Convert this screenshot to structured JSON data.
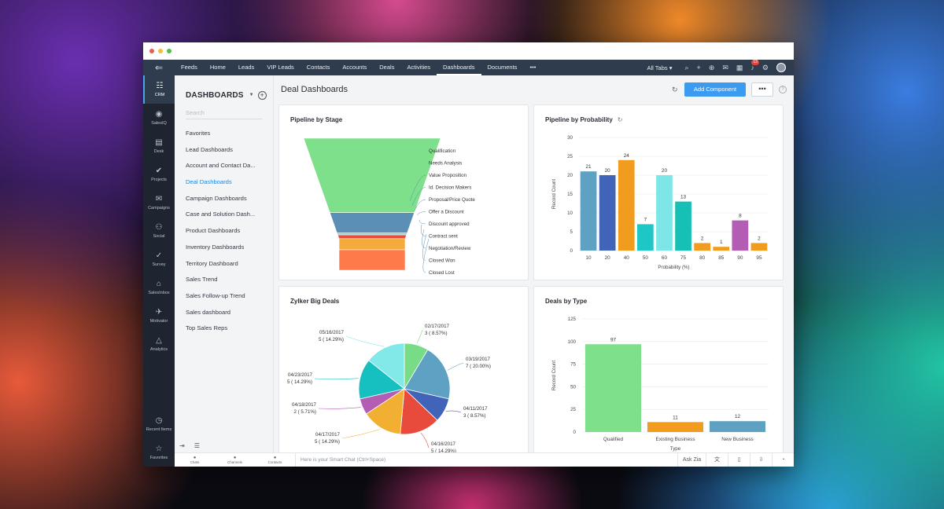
{
  "colors": {
    "accent": "#3a9bf0",
    "nav_bg": "#2f3c4d",
    "rail_bg": "#1f2530",
    "funnel": [
      "#7ee08a",
      "#5b8fb6",
      "#8fd0c7",
      "#e84b3c",
      "#f2b032",
      "#e84b3c",
      "#f5ab3b",
      "#ff7a4a"
    ],
    "green": "#7ee08a",
    "orange": "#f29c1f"
  },
  "topnav": {
    "back_icon": "back-arrow-icon",
    "tabs": [
      "Feeds",
      "Home",
      "Leads",
      "VIP Leads",
      "Contacts",
      "Accounts",
      "Deals",
      "Activities",
      "Dashboards",
      "Documents",
      "•••"
    ],
    "active_tab": "Dashboards",
    "all_tabs": "All Tabs ▾",
    "notification_count": "13"
  },
  "rail": {
    "items": [
      {
        "label": "CRM",
        "icon": "crm-icon",
        "glyph": "☷"
      },
      {
        "label": "SalesIQ",
        "icon": "salesiq-icon",
        "glyph": "◉"
      },
      {
        "label": "Desk",
        "icon": "desk-icon",
        "glyph": "▤"
      },
      {
        "label": "Projects",
        "icon": "projects-icon",
        "glyph": "✔"
      },
      {
        "label": "Campaigns",
        "icon": "campaigns-icon",
        "glyph": "✉"
      },
      {
        "label": "Social",
        "icon": "social-icon",
        "glyph": "⚇"
      },
      {
        "label": "Survey",
        "icon": "survey-icon",
        "glyph": "✓"
      },
      {
        "label": "SalesInbox",
        "icon": "salesinbox-icon",
        "glyph": "⌂"
      },
      {
        "label": "Motivator",
        "icon": "motivator-icon",
        "glyph": "✈"
      },
      {
        "label": "Analytics",
        "icon": "analytics-icon",
        "glyph": "△"
      }
    ],
    "bottom": [
      {
        "label": "Recent Items",
        "icon": "recent-items-icon",
        "glyph": "◷"
      },
      {
        "label": "Favorites",
        "icon": "favorites-icon",
        "glyph": "☆"
      }
    ]
  },
  "dashboards": {
    "title": "DASHBOARDS",
    "search_placeholder": "Search",
    "items": [
      "Favorites",
      "Lead Dashboards",
      "Account and Contact Da...",
      "Deal Dashboards",
      "Campaign Dashboards",
      "Case and Solution Dash...",
      "Product Dashboards",
      "Inventory Dashboards",
      "Territory Dashboard",
      "Sales Trend",
      "Sales Follow-up Trend",
      "Sales dashboard",
      "Top Sales Reps"
    ],
    "active": "Deal Dashboards"
  },
  "main": {
    "title": "Deal Dashboards",
    "add_component": "Add Component",
    "more": "•••",
    "help": "?"
  },
  "bottombar": {
    "tabs": [
      {
        "label": "Chats",
        "icon": "chats-icon"
      },
      {
        "label": "Channels",
        "icon": "channels-icon"
      },
      {
        "label": "Contacts",
        "icon": "contacts-icon"
      }
    ],
    "smartchat_placeholder": "Here is your Smart Chat (Ctrl+Space)",
    "ask_zia": "Ask Zia"
  },
  "chart_data": [
    {
      "type": "funnel",
      "title": "Pipeline by Stage",
      "stages": [
        "Qualification",
        "Needs Analysis",
        "Value Proposition",
        "Id. Decision Makers",
        "Proposal/Price Quote",
        "Offer a Discount",
        "Discount approved",
        "Contract sent",
        "Negotiation/Review",
        "Closed Won",
        "Closed Lost"
      ],
      "segment_values": [
        40,
        11,
        1,
        2,
        6,
        11
      ]
    },
    {
      "type": "bar",
      "title": "Pipeline by Probability",
      "xlabel": "Probability (%)",
      "ylabel": "Record Count",
      "ylim": [
        0,
        30
      ],
      "yticks": [
        0,
        5,
        10,
        15,
        20,
        25,
        30
      ],
      "categories": [
        "10",
        "20",
        "40",
        "50",
        "60",
        "75",
        "80",
        "85",
        "90",
        "95"
      ],
      "values": [
        21,
        20,
        24,
        7,
        20,
        13,
        2,
        1,
        8,
        2
      ],
      "bar_colors": [
        "#5ea1c2",
        "#4163b8",
        "#f29c1f",
        "#1fc6c6",
        "#7ee6e6",
        "#17c0b4",
        "#f29c1f",
        "#f29c1f",
        "#b45db5",
        "#f29c1f"
      ]
    },
    {
      "type": "pie",
      "title": "Zylker Big Deals",
      "slices": [
        {
          "label": "02/17/2017",
          "value": 3,
          "pct": "8.57%",
          "color": "#78dc87"
        },
        {
          "label": "03/19/2017",
          "value": 7,
          "pct": "20.00%",
          "color": "#5ea1c2"
        },
        {
          "label": "04/11/2017",
          "value": 3,
          "pct": "8.57%",
          "color": "#4163b8"
        },
        {
          "label": "04/16/2017",
          "value": 5,
          "pct": "14.29%",
          "color": "#e84b3c"
        },
        {
          "label": "04/17/2017",
          "value": 5,
          "pct": "14.29%",
          "color": "#f2b032"
        },
        {
          "label": "04/18/2017",
          "value": 2,
          "pct": "5.71%",
          "color": "#b45db5"
        },
        {
          "label": "04/23/2017",
          "value": 5,
          "pct": "14.29%",
          "color": "#17c0c0"
        },
        {
          "label": "05/16/2017",
          "value": 5,
          "pct": "14.29%",
          "color": "#82e8e8"
        }
      ]
    },
    {
      "type": "bar",
      "title": "Deals by Type",
      "xlabel": "Type",
      "ylabel": "Record Count",
      "ylim": [
        0,
        125
      ],
      "yticks": [
        0,
        25,
        50,
        75,
        100,
        125
      ],
      "categories": [
        "Qualified",
        "Existing Business",
        "New Business"
      ],
      "values": [
        97,
        11,
        12
      ],
      "bar_colors": [
        "#7ee08a",
        "#f29c1f",
        "#5ea1c2"
      ]
    }
  ]
}
